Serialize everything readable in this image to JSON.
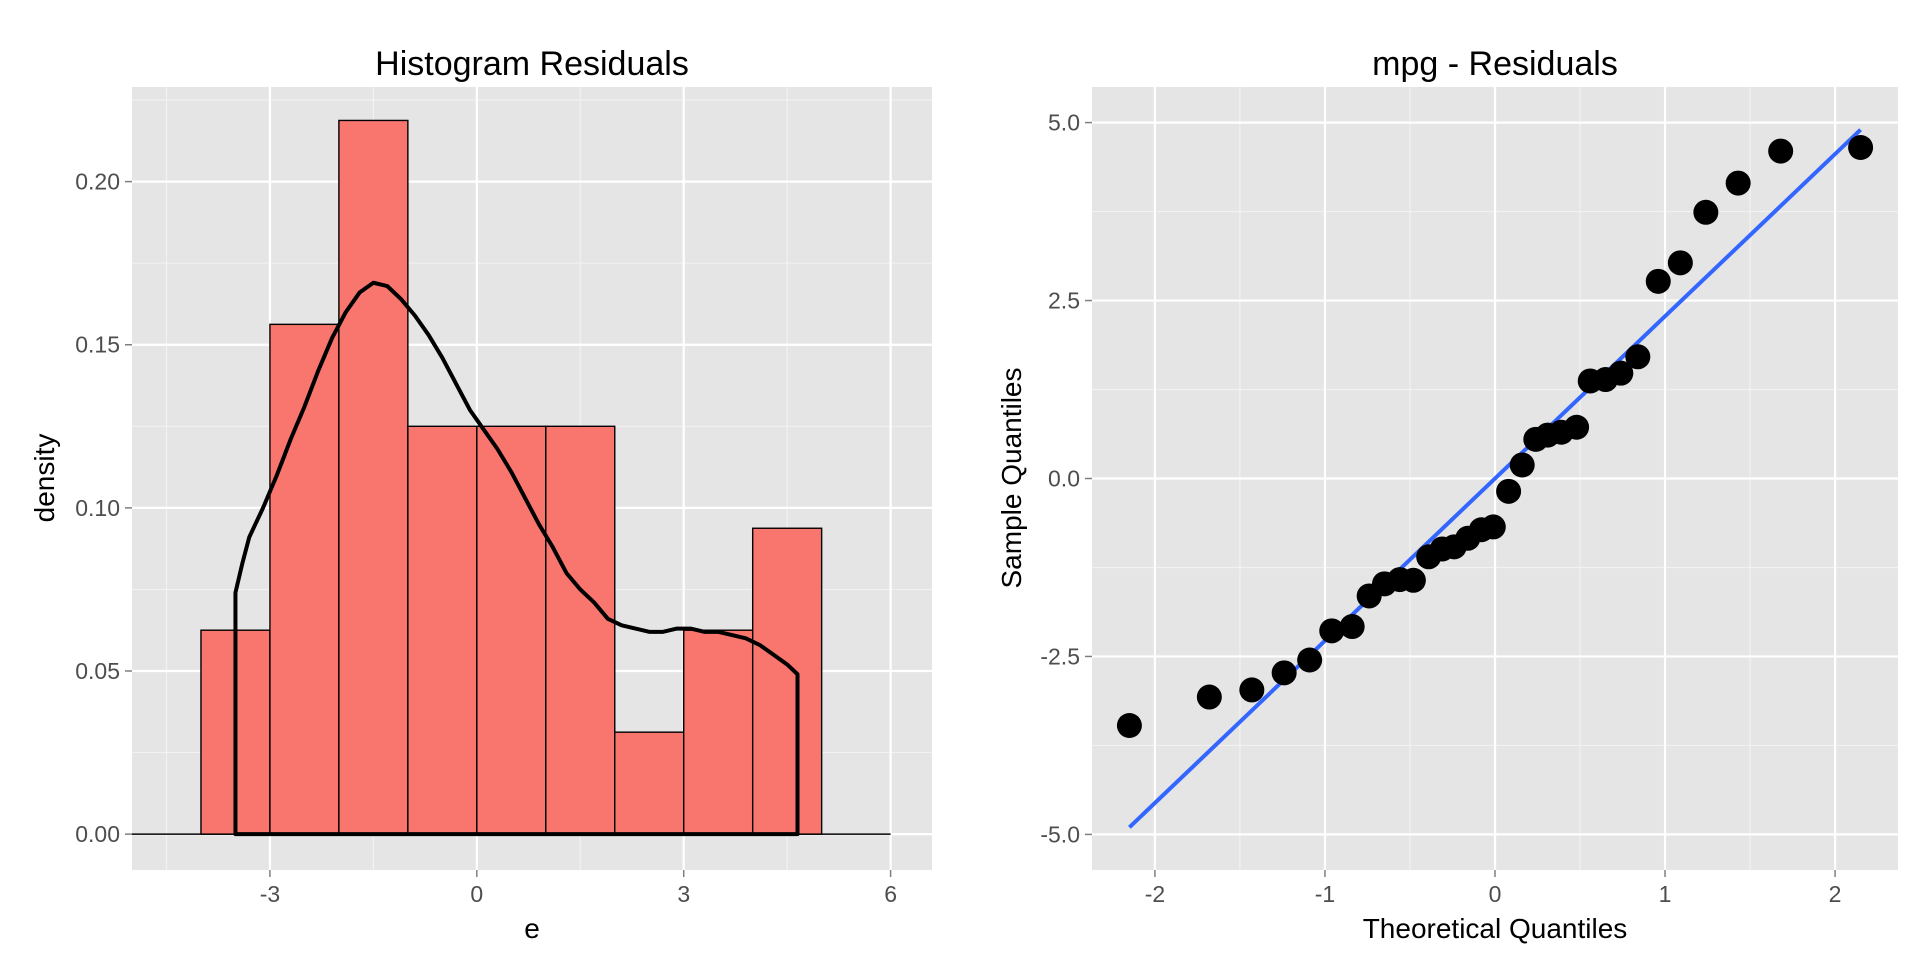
{
  "chart_data": [
    {
      "type": "bar",
      "title": "Histogram Residuals",
      "xlabel": "e",
      "ylabel": "density",
      "xlim": [
        -5.0,
        6.6
      ],
      "ylim": [
        -0.011,
        0.229
      ],
      "x_ticks": [
        "-3",
        "0",
        "3",
        "6"
      ],
      "x_tick_values": [
        -3,
        0,
        3,
        6
      ],
      "y_ticks": [
        "0.00",
        "0.05",
        "0.10",
        "0.15",
        "0.20"
      ],
      "y_tick_values": [
        0.0,
        0.05,
        0.1,
        0.15,
        0.2
      ],
      "grid": true,
      "bar_color": "#F8766D",
      "bins": [
        {
          "x0": -4,
          "x1": -3,
          "value": 0.0625
        },
        {
          "x0": -3,
          "x1": -2,
          "value": 0.15625
        },
        {
          "x0": -2,
          "x1": -1,
          "value": 0.21875
        },
        {
          "x0": -1,
          "x1": 0,
          "value": 0.125
        },
        {
          "x0": 0,
          "x1": 1,
          "value": 0.125
        },
        {
          "x0": 1,
          "x1": 2,
          "value": 0.125
        },
        {
          "x0": 2,
          "x1": 3,
          "value": 0.03125
        },
        {
          "x0": 3,
          "x1": 4,
          "value": 0.0625
        },
        {
          "x0": 4,
          "x1": 5,
          "value": 0.09375
        }
      ],
      "baseline_range": [
        -5,
        6
      ],
      "density_curve": {
        "x": [
          -3.5,
          -3.4,
          -3.3,
          -3.1,
          -2.9,
          -2.7,
          -2.5,
          -2.3,
          -2.1,
          -1.9,
          -1.7,
          -1.5,
          -1.3,
          -1.1,
          -0.9,
          -0.7,
          -0.5,
          -0.3,
          -0.1,
          0.1,
          0.3,
          0.5,
          0.7,
          0.9,
          1.1,
          1.3,
          1.5,
          1.7,
          1.9,
          2.1,
          2.3,
          2.5,
          2.7,
          2.9,
          3.1,
          3.3,
          3.5,
          3.7,
          3.9,
          4.1,
          4.3,
          4.5,
          4.65
        ],
        "y": [
          0.074,
          0.083,
          0.091,
          0.1,
          0.11,
          0.121,
          0.131,
          0.142,
          0.152,
          0.16,
          0.166,
          0.169,
          0.168,
          0.164,
          0.159,
          0.153,
          0.146,
          0.138,
          0.13,
          0.124,
          0.118,
          0.111,
          0.103,
          0.095,
          0.088,
          0.08,
          0.075,
          0.071,
          0.066,
          0.064,
          0.063,
          0.062,
          0.062,
          0.063,
          0.063,
          0.062,
          0.062,
          0.061,
          0.06,
          0.058,
          0.055,
          0.052,
          0.049
        ]
      },
      "curve_color": "#000000"
    },
    {
      "type": "scatter",
      "title": "mpg - Residuals",
      "xlabel": "Theoretical Quantiles",
      "ylabel": "Sample Quantiles",
      "xlim": [
        -2.37,
        2.37
      ],
      "ylim": [
        -5.5,
        5.5
      ],
      "x_ticks": [
        "-2",
        "-1",
        "0",
        "1",
        "2"
      ],
      "x_tick_values": [
        -2,
        -1,
        0,
        1,
        2
      ],
      "y_ticks": [
        "-5.0",
        "-2.5",
        "0.0",
        "2.5",
        "5.0"
      ],
      "y_tick_values": [
        -5.0,
        -2.5,
        0.0,
        2.5,
        5.0
      ],
      "grid": true,
      "point_color": "#000000",
      "points": {
        "x": [
          -2.15,
          -1.68,
          -1.43,
          -1.24,
          -1.09,
          -0.96,
          -0.84,
          -0.74,
          -0.65,
          -0.56,
          -0.48,
          -0.39,
          -0.31,
          -0.24,
          -0.16,
          -0.08,
          -0.01,
          0.08,
          0.16,
          0.24,
          0.31,
          0.39,
          0.48,
          0.56,
          0.65,
          0.74,
          0.84,
          0.96,
          1.09,
          1.24,
          1.43,
          1.68,
          2.15
        ],
        "y": [
          -3.47,
          -3.07,
          -2.97,
          -2.73,
          -2.55,
          -2.14,
          -2.08,
          -1.65,
          -1.48,
          -1.42,
          -1.43,
          -1.1,
          -0.99,
          -0.96,
          -0.84,
          -0.72,
          -0.68,
          -0.18,
          0.19,
          0.55,
          0.61,
          0.65,
          0.72,
          1.37,
          1.39,
          1.48,
          1.71,
          2.77,
          3.03,
          3.74,
          4.15,
          4.6,
          4.65
        ]
      },
      "reference_line": {
        "x": [
          -2.15,
          2.15
        ],
        "y": [
          -4.9,
          4.9
        ]
      },
      "line_color": "#3366FF"
    }
  ]
}
